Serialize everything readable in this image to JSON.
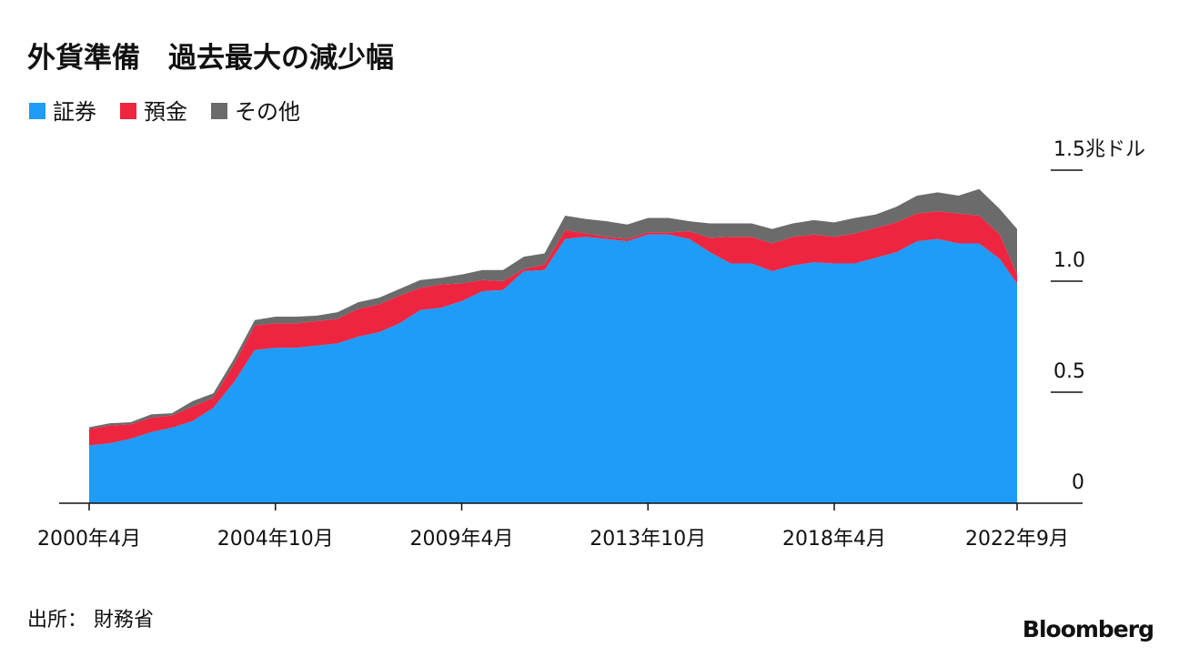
{
  "chart_data": {
    "type": "stacked_area",
    "title": "外貨準備　過去最大の減少幅",
    "source": "出所： 財務省",
    "brand": "Bloomberg",
    "x": [
      "2000-04",
      "2000-10",
      "2001-04",
      "2001-10",
      "2002-04",
      "2002-10",
      "2003-04",
      "2003-10",
      "2004-04",
      "2004-10",
      "2005-04",
      "2005-10",
      "2006-04",
      "2006-10",
      "2007-04",
      "2007-10",
      "2008-04",
      "2008-10",
      "2009-04",
      "2009-10",
      "2010-04",
      "2010-10",
      "2011-04",
      "2011-10",
      "2012-04",
      "2012-10",
      "2013-04",
      "2013-10",
      "2014-04",
      "2014-10",
      "2015-04",
      "2015-10",
      "2016-04",
      "2016-10",
      "2017-04",
      "2017-10",
      "2018-04",
      "2018-10",
      "2019-04",
      "2019-10",
      "2020-04",
      "2020-10",
      "2021-04",
      "2021-10",
      "2022-04",
      "2022-09"
    ],
    "series": [
      {
        "name": "証券",
        "color": "#1e9cf7",
        "values": [
          0.26,
          0.27,
          0.29,
          0.32,
          0.34,
          0.37,
          0.43,
          0.545,
          0.69,
          0.7,
          0.7,
          0.71,
          0.72,
          0.75,
          0.77,
          0.81,
          0.87,
          0.88,
          0.91,
          0.955,
          0.96,
          1.045,
          1.05,
          1.19,
          1.2,
          1.19,
          1.18,
          1.21,
          1.21,
          1.19,
          1.13,
          1.08,
          1.08,
          1.045,
          1.07,
          1.085,
          1.08,
          1.08,
          1.105,
          1.13,
          1.18,
          1.19,
          1.17,
          1.17,
          1.1,
          0.99
        ]
      },
      {
        "name": "預金",
        "color": "#ee2540",
        "values": [
          0.074,
          0.08,
          0.065,
          0.065,
          0.055,
          0.065,
          0.045,
          0.08,
          0.11,
          0.11,
          0.11,
          0.11,
          0.11,
          0.125,
          0.125,
          0.125,
          0.1,
          0.105,
          0.08,
          0.05,
          0.04,
          0.01,
          0.025,
          0.04,
          0.015,
          0.01,
          0.01,
          0.01,
          0.01,
          0.035,
          0.065,
          0.12,
          0.12,
          0.125,
          0.13,
          0.125,
          0.12,
          0.135,
          0.135,
          0.135,
          0.125,
          0.125,
          0.135,
          0.125,
          0.11,
          0.04
        ]
      },
      {
        "name": "その他",
        "color": "#6b6b6b",
        "values": [
          0.008,
          0.01,
          0.01,
          0.015,
          0.01,
          0.025,
          0.02,
          0.025,
          0.025,
          0.03,
          0.03,
          0.025,
          0.03,
          0.03,
          0.03,
          0.03,
          0.035,
          0.03,
          0.04,
          0.045,
          0.05,
          0.055,
          0.05,
          0.065,
          0.065,
          0.07,
          0.065,
          0.065,
          0.065,
          0.045,
          0.065,
          0.06,
          0.06,
          0.065,
          0.06,
          0.065,
          0.065,
          0.07,
          0.06,
          0.07,
          0.08,
          0.085,
          0.08,
          0.12,
          0.115,
          0.205
        ]
      }
    ],
    "xlim": [
      "2000-04",
      "2022-09"
    ],
    "xticks": [
      {
        "value": "2000-04",
        "label": "2000年4月"
      },
      {
        "value": "2004-10",
        "label": "2004年10月"
      },
      {
        "value": "2009-04",
        "label": "2009年4月"
      },
      {
        "value": "2013-10",
        "label": "2013年10月"
      },
      {
        "value": "2018-04",
        "label": "2018年4月"
      },
      {
        "value": "2022-09",
        "label": "2022年9月"
      }
    ],
    "ylim": [
      0,
      1.5
    ],
    "yticks": [
      0,
      0.5,
      {
        "value": 1,
        "label": "1.0"
      },
      {
        "value": 1.5,
        "label": "1.5兆ドル"
      }
    ]
  }
}
